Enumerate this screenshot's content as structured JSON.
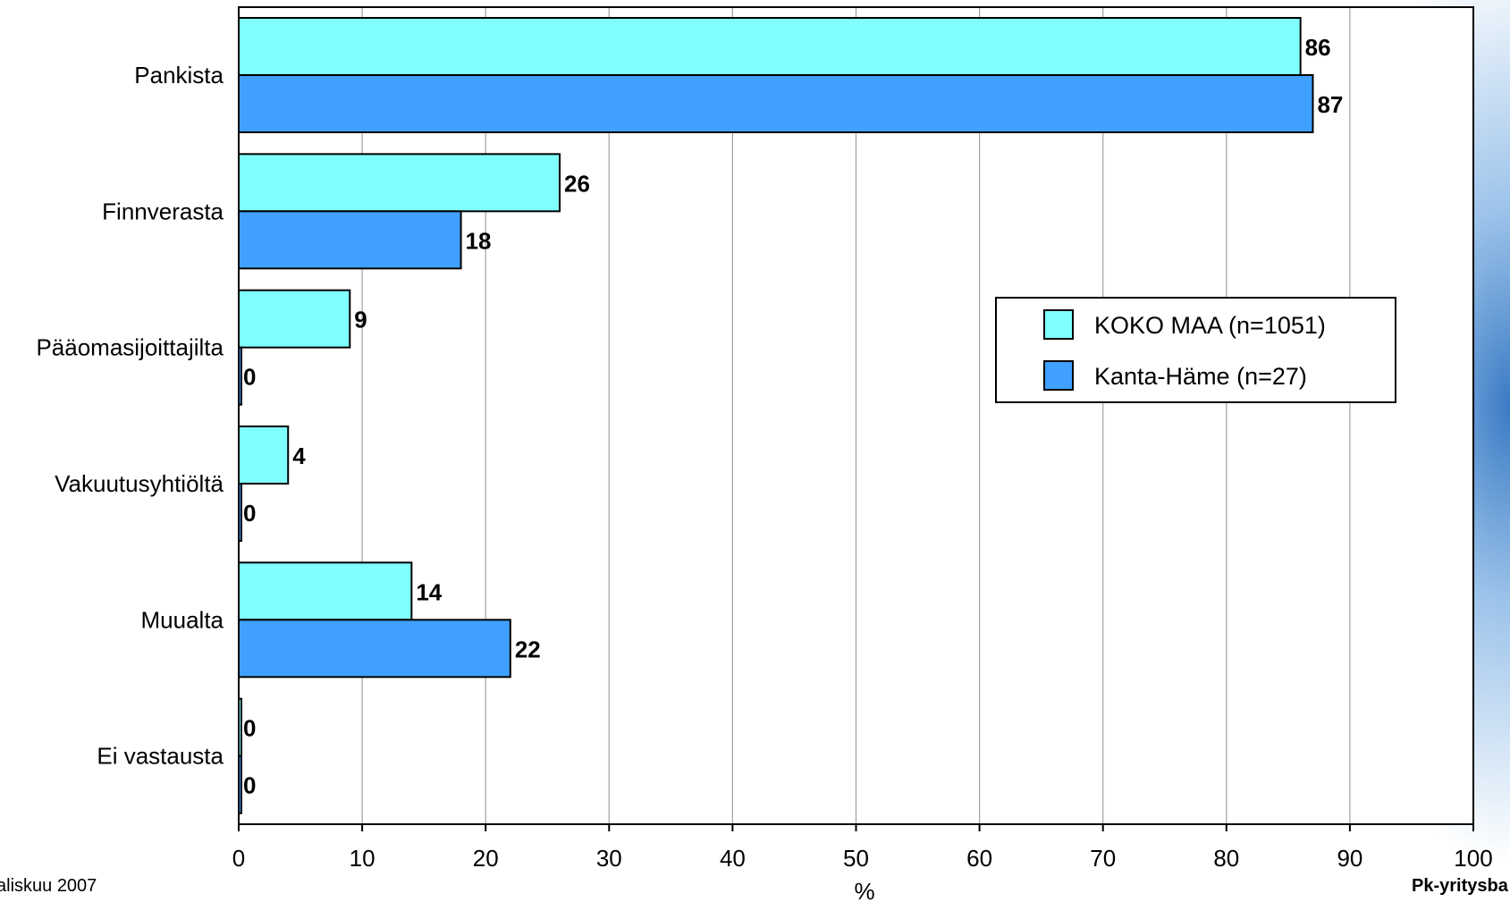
{
  "chart_data": {
    "type": "bar",
    "orientation": "horizontal",
    "categories": [
      "Pankista",
      "Finnverasta",
      "Pääomasijoittajilta",
      "Vakuutusyhtiöltä",
      "Muualta",
      "Ei vastausta"
    ],
    "series": [
      {
        "name": "KOKO MAA (n=1051)",
        "color": "#80ffff",
        "values": [
          86,
          26,
          9,
          4,
          14,
          0
        ]
      },
      {
        "name": "Kanta-Häme (n=27)",
        "color": "#40a0ff",
        "values": [
          87,
          18,
          0,
          0,
          22,
          0
        ]
      }
    ],
    "xlabel": "%",
    "xlim": [
      0,
      100
    ],
    "xticks": [
      0,
      10,
      20,
      30,
      40,
      50,
      60,
      70,
      80,
      90,
      100
    ],
    "grid": "vertical",
    "legend": "right-middle",
    "data_labels": true
  },
  "footer": {
    "left": "aliskuu 2007",
    "right": "Pk-yritysba"
  }
}
